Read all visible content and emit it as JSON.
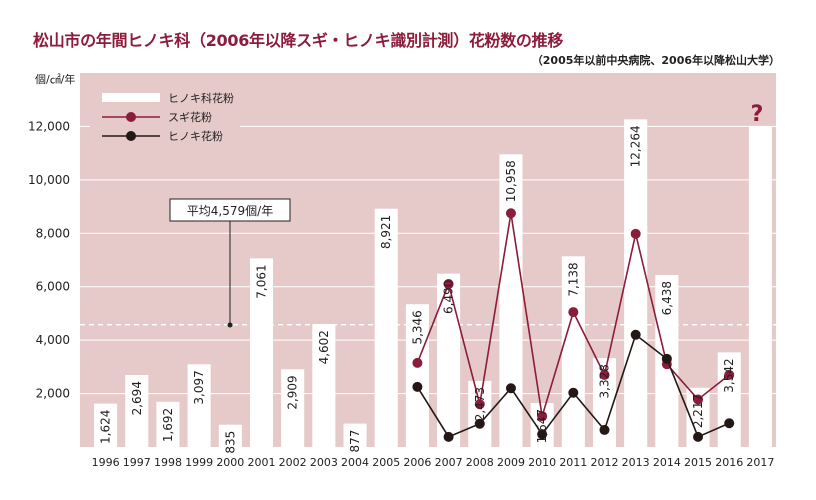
{
  "title": "松山市の年間ヒノキ科（2006年以降スギ・ヒノキ識別計測）花粉数の推移",
  "subtitle": "（2005年以前中央病院、2006年以降松山大学）",
  "colors": {
    "background": "#e6c9c9",
    "bar": "#ffffff",
    "sugi": "#8c1c3c",
    "hinoki": "#231815",
    "title": "#8c1c3c",
    "question": "#8c1c3c"
  },
  "chart_data": {
    "type": "bar",
    "ylabel": "個/㎠/年",
    "ylim": [
      0,
      14000
    ],
    "yticks": [
      2000,
      4000,
      6000,
      8000,
      10000,
      12000
    ],
    "ytick_labels": [
      "2,000",
      "4,000",
      "6,000",
      "8,000",
      "10,000",
      "12,000"
    ],
    "grid": true,
    "legend_position": "top-left",
    "categories": [
      "1996",
      "1997",
      "1998",
      "1999",
      "2000",
      "2001",
      "2002",
      "2003",
      "2004",
      "2005",
      "2006",
      "2007",
      "2008",
      "2009",
      "2010",
      "2011",
      "2012",
      "2013",
      "2014",
      "2015",
      "2016",
      "2017"
    ],
    "series": [
      {
        "name": "ヒノキ科花粉",
        "type": "bar",
        "values": [
          1624,
          2694,
          1692,
          3097,
          835,
          7061,
          2909,
          4602,
          877,
          8921,
          5346,
          6490,
          2473,
          10958,
          1647,
          7138,
          3328,
          12264,
          6438,
          2217,
          3542,
          12000
        ],
        "labels": [
          "1,624",
          "2,694",
          "1,692",
          "3,097",
          "835",
          "7,061",
          "2,909",
          "4,602",
          "877",
          "8,921",
          "5,346",
          "6,490",
          "2,473",
          "10,958",
          "1,647",
          "7,138",
          "3,328",
          "12,264",
          "6,438",
          "2,217",
          "3,542",
          "?"
        ]
      },
      {
        "name": "スギ花粉",
        "type": "line",
        "values": [
          null,
          null,
          null,
          null,
          null,
          null,
          null,
          null,
          null,
          null,
          3150,
          6100,
          1600,
          8750,
          1150,
          5050,
          2700,
          7980,
          3100,
          1780,
          2700,
          null
        ]
      },
      {
        "name": "ヒノキ花粉",
        "type": "line",
        "values": [
          null,
          null,
          null,
          null,
          null,
          null,
          null,
          null,
          null,
          null,
          2250,
          380,
          870,
          2200,
          480,
          2030,
          640,
          4200,
          3300,
          380,
          890,
          null
        ]
      }
    ],
    "average": {
      "value": 4579,
      "label": "平均4,579個/年"
    }
  }
}
